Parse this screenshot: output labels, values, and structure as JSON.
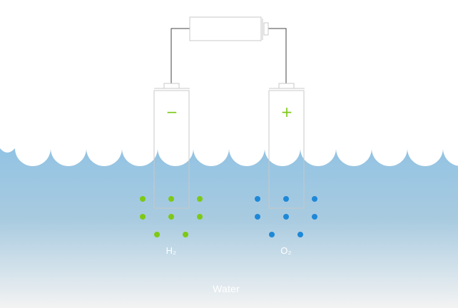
{
  "colors": {
    "water_top": "#92c3e3",
    "water_bottom": "#f3f3f3",
    "wire": "#444444",
    "outline": "#c8c8c8",
    "hydrogen": "#7dc915",
    "oxygen": "#1e88d8"
  },
  "icons": {
    "battery": "battery-icon",
    "cathode": "cathode-tube",
    "anode": "anode-tube"
  },
  "cathode": {
    "sign": "−",
    "gas_label": "H₂",
    "bubble_count": 8
  },
  "anode": {
    "sign": "+",
    "gas_label": "O₂",
    "bubble_count": 8
  },
  "water_label": "Water"
}
